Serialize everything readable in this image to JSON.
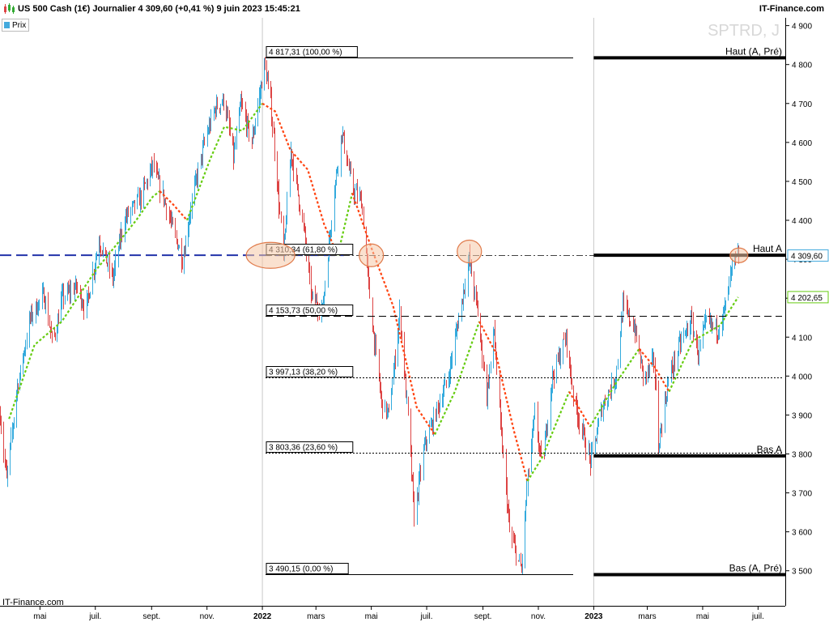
{
  "header": {
    "title": "US 500 Cash (1€) Journalier 4 309,60 (+0,41 %) 9 juin 2023 15:45:21",
    "brand": "IT-Finance.com"
  },
  "legend": {
    "label": "Prix"
  },
  "watermark": "SPTRD, J",
  "credit": "IT-Finance.com",
  "chart_data": {
    "type": "candlestick",
    "title": "US 500 Cash (1€) Journalier",
    "ylim": [
      3410,
      4920
    ],
    "y_ticks": [
      3500,
      3600,
      3700,
      3800,
      3900,
      4000,
      4100,
      4200,
      4300,
      4400,
      4500,
      4600,
      4700,
      4800,
      4900
    ],
    "y_tick_labels": [
      "3 500",
      "3 600",
      "3 700",
      "3 800",
      "3 900",
      "4 000",
      "4 100",
      "4 200",
      "4 300",
      "4 400",
      "4 500",
      "4 600",
      "4 700",
      "4 800",
      "4 900"
    ],
    "x_range": [
      "2021-03-18",
      "2023-07-31"
    ],
    "x_ticks": [
      {
        "date": "2021-05-01",
        "label": "mai"
      },
      {
        "date": "2021-07-01",
        "label": "juil."
      },
      {
        "date": "2021-09-01",
        "label": "sept."
      },
      {
        "date": "2021-11-01",
        "label": "nov."
      },
      {
        "date": "2022-01-01",
        "label": "2022"
      },
      {
        "date": "2022-03-01",
        "label": "mars"
      },
      {
        "date": "2022-05-01",
        "label": "mai"
      },
      {
        "date": "2022-07-01",
        "label": "juil."
      },
      {
        "date": "2022-09-01",
        "label": "sept."
      },
      {
        "date": "2022-11-01",
        "label": "nov."
      },
      {
        "date": "2023-01-01",
        "label": "2023"
      },
      {
        "date": "2023-03-01",
        "label": "mars"
      },
      {
        "date": "2023-05-01",
        "label": "mai"
      },
      {
        "date": "2023-07-01",
        "label": "juil."
      }
    ],
    "price_path": [
      [
        "2021-03-18",
        3900
      ],
      [
        "2021-03-25",
        3730
      ],
      [
        "2021-04-05",
        3960
      ],
      [
        "2021-04-20",
        4150
      ],
      [
        "2021-05-05",
        4210
      ],
      [
        "2021-05-15",
        4080
      ],
      [
        "2021-05-25",
        4200
      ],
      [
        "2021-06-10",
        4230
      ],
      [
        "2021-06-20",
        4170
      ],
      [
        "2021-07-05",
        4350
      ],
      [
        "2021-07-20",
        4250
      ],
      [
        "2021-08-01",
        4400
      ],
      [
        "2021-08-20",
        4460
      ],
      [
        "2021-09-02",
        4540
      ],
      [
        "2021-09-15",
        4450
      ],
      [
        "2021-09-25",
        4370
      ],
      [
        "2021-10-05",
        4300
      ],
      [
        "2021-10-15",
        4450
      ],
      [
        "2021-10-30",
        4610
      ],
      [
        "2021-11-10",
        4690
      ],
      [
        "2021-11-20",
        4710
      ],
      [
        "2021-11-30",
        4560
      ],
      [
        "2021-12-08",
        4700
      ],
      [
        "2021-12-20",
        4600
      ],
      [
        "2022-01-03",
        4800
      ],
      [
        "2022-01-10",
        4700
      ],
      [
        "2022-01-24",
        4300
      ],
      [
        "2022-02-01",
        4580
      ],
      [
        "2022-02-15",
        4380
      ],
      [
        "2022-02-24",
        4200
      ],
      [
        "2022-03-08",
        4170
      ],
      [
        "2022-03-20",
        4460
      ],
      [
        "2022-03-29",
        4630
      ],
      [
        "2022-04-10",
        4480
      ],
      [
        "2022-04-20",
        4450
      ],
      [
        "2022-05-01",
        4150
      ],
      [
        "2022-05-12",
        3930
      ],
      [
        "2022-05-20",
        3900
      ],
      [
        "2022-06-01",
        4160
      ],
      [
        "2022-06-10",
        3900
      ],
      [
        "2022-06-17",
        3640
      ],
      [
        "2022-06-28",
        3820
      ],
      [
        "2022-07-10",
        3900
      ],
      [
        "2022-07-25",
        4000
      ],
      [
        "2022-08-05",
        4150
      ],
      [
        "2022-08-16",
        4300
      ],
      [
        "2022-08-25",
        4180
      ],
      [
        "2022-09-05",
        3950
      ],
      [
        "2022-09-13",
        4120
      ],
      [
        "2022-09-20",
        3870
      ],
      [
        "2022-09-30",
        3600
      ],
      [
        "2022-10-13",
        3500
      ],
      [
        "2022-10-20",
        3740
      ],
      [
        "2022-10-28",
        3900
      ],
      [
        "2022-11-05",
        3760
      ],
      [
        "2022-11-15",
        3990
      ],
      [
        "2022-12-01",
        4100
      ],
      [
        "2022-12-10",
        3940
      ],
      [
        "2022-12-28",
        3780
      ],
      [
        "2023-01-10",
        3920
      ],
      [
        "2023-01-25",
        4000
      ],
      [
        "2023-02-02",
        4180
      ],
      [
        "2023-02-15",
        4120
      ],
      [
        "2023-02-25",
        3990
      ],
      [
        "2023-03-08",
        4040
      ],
      [
        "2023-03-13",
        3820
      ],
      [
        "2023-03-24",
        3990
      ],
      [
        "2023-04-05",
        4080
      ],
      [
        "2023-04-18",
        4140
      ],
      [
        "2023-04-26",
        4060
      ],
      [
        "2023-05-05",
        4140
      ],
      [
        "2023-05-17",
        4120
      ],
      [
        "2023-05-26",
        4180
      ],
      [
        "2023-06-02",
        4280
      ],
      [
        "2023-06-09",
        4309.6
      ]
    ],
    "trend_segments": [
      {
        "color": "#66cc11",
        "points": [
          [
            "2021-03-28",
            3890
          ],
          [
            "2021-04-25",
            4080
          ],
          [
            "2021-05-25",
            4140
          ],
          [
            "2021-07-01",
            4270
          ],
          [
            "2021-08-15",
            4400
          ],
          [
            "2021-09-02",
            4460
          ],
          [
            "2021-09-10",
            4475
          ]
        ]
      },
      {
        "color": "#ff4411",
        "points": [
          [
            "2021-09-10",
            4475
          ],
          [
            "2021-09-25",
            4440
          ],
          [
            "2021-10-10",
            4400
          ]
        ]
      },
      {
        "color": "#66cc11",
        "points": [
          [
            "2021-10-10",
            4400
          ],
          [
            "2021-11-05",
            4560
          ],
          [
            "2021-11-20",
            4640
          ],
          [
            "2021-12-10",
            4630
          ],
          [
            "2022-01-01",
            4700
          ]
        ]
      },
      {
        "color": "#ff4411",
        "points": [
          [
            "2022-01-01",
            4700
          ],
          [
            "2022-01-15",
            4680
          ],
          [
            "2022-02-01",
            4580
          ],
          [
            "2022-02-20",
            4530
          ],
          [
            "2022-03-10",
            4390
          ],
          [
            "2022-03-25",
            4310
          ]
        ]
      },
      {
        "color": "#66cc11",
        "points": [
          [
            "2022-03-25",
            4310
          ],
          [
            "2022-04-10",
            4470
          ]
        ]
      },
      {
        "color": "#ff4411",
        "points": [
          [
            "2022-04-10",
            4470
          ],
          [
            "2022-05-01",
            4330
          ],
          [
            "2022-05-25",
            4180
          ],
          [
            "2022-06-20",
            3920
          ],
          [
            "2022-07-10",
            3850
          ]
        ]
      },
      {
        "color": "#66cc11",
        "points": [
          [
            "2022-07-10",
            3850
          ],
          [
            "2022-08-01",
            3960
          ],
          [
            "2022-08-28",
            4140
          ]
        ]
      },
      {
        "color": "#ff4411",
        "points": [
          [
            "2022-08-28",
            4140
          ],
          [
            "2022-09-15",
            4060
          ],
          [
            "2022-10-05",
            3860
          ],
          [
            "2022-10-20",
            3730
          ]
        ]
      },
      {
        "color": "#66cc11",
        "points": [
          [
            "2022-10-20",
            3730
          ],
          [
            "2022-11-05",
            3790
          ],
          [
            "2022-12-05",
            3960
          ]
        ]
      },
      {
        "color": "#ff4411",
        "points": [
          [
            "2022-12-05",
            3960
          ],
          [
            "2022-12-28",
            3870
          ]
        ]
      },
      {
        "color": "#66cc11",
        "points": [
          [
            "2022-12-28",
            3870
          ],
          [
            "2023-01-25",
            3980
          ],
          [
            "2023-02-20",
            4070
          ]
        ]
      },
      {
        "color": "#ff4411",
        "points": [
          [
            "2023-02-20",
            4070
          ],
          [
            "2023-03-10",
            4020
          ],
          [
            "2023-03-25",
            3960
          ]
        ]
      },
      {
        "color": "#66cc11",
        "points": [
          [
            "2023-03-25",
            3960
          ],
          [
            "2023-04-20",
            4090
          ],
          [
            "2023-05-20",
            4130
          ],
          [
            "2023-06-09",
            4202.65
          ]
        ]
      }
    ],
    "levels": [
      {
        "value": 4817.31,
        "label": "4 817,31 (100,00 %)",
        "style": "solid"
      },
      {
        "value": 4310.34,
        "label": "4 310,34 (61,80 %)",
        "style": "dashdot"
      },
      {
        "value": 4153.73,
        "label": "4 153,73 (50,00 %)",
        "style": "dash"
      },
      {
        "value": 3997.13,
        "label": "3 997,13 (38,20 %)",
        "style": "dot"
      },
      {
        "value": 3803.36,
        "label": "3 803,36 (23,60 %)",
        "style": "dot"
      },
      {
        "value": 3490.15,
        "label": "3 490,15 (0,00 %)",
        "style": "solid"
      }
    ],
    "horizontal_lines": [
      {
        "value": 4817.31,
        "label": "Haut (A, Pré)",
        "start": "2023-01-01"
      },
      {
        "value": 4310.34,
        "label": "Haut A",
        "start": "2023-01-01"
      },
      {
        "value": 3795,
        "label": "Bas A",
        "start": "2023-01-01"
      },
      {
        "value": 3490.15,
        "label": "Bas (A, Pré)",
        "start": "2023-01-01"
      }
    ],
    "support_line": {
      "value": 4310.34,
      "color": "#2233aa",
      "start": "2021-03-18",
      "end": "2022-04-01"
    },
    "highlights": [
      {
        "date": "2022-01-10",
        "value": 4310
      },
      {
        "date": "2022-05-01",
        "value": 4310
      },
      {
        "date": "2022-08-17",
        "value": 4320
      },
      {
        "date": "2023-06-10",
        "value": 4310
      }
    ],
    "price_tags": [
      {
        "value": 4309.6,
        "label": "4 309,60",
        "color": "#44aadd"
      },
      {
        "value": 4202.65,
        "label": "4 202,65",
        "color": "#66cc11"
      }
    ]
  }
}
